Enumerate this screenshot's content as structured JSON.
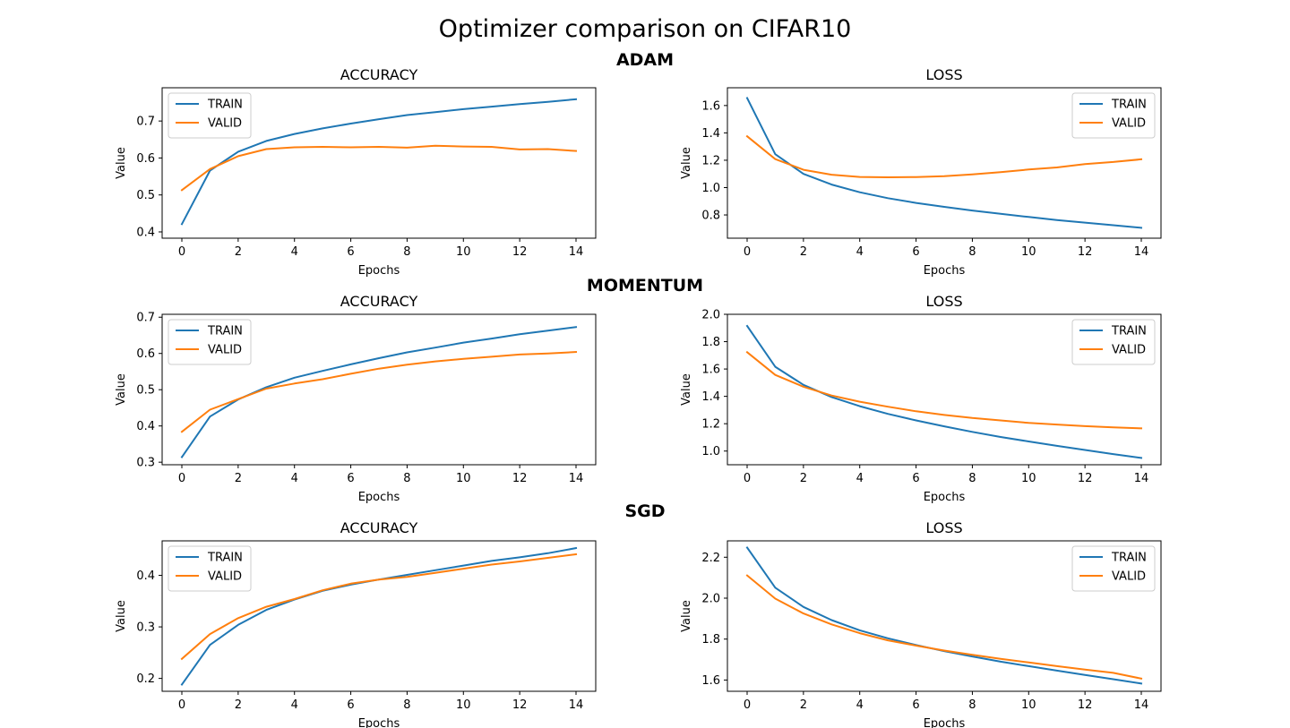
{
  "figure": {
    "title": "Optimizer comparison on CIFAR10",
    "colors": {
      "train": "#1f77b4",
      "valid": "#ff7f0e"
    }
  },
  "chart_data": [
    {
      "type": "line",
      "group": "ADAM",
      "title": "ACCURACY",
      "xlabel": "Epochs",
      "ylabel": "Value",
      "x": [
        0,
        1,
        2,
        3,
        4,
        5,
        6,
        7,
        8,
        9,
        10,
        11,
        12,
        13,
        14
      ],
      "xlim": [
        -0.7,
        14.7
      ],
      "ylim": [
        0.383,
        0.79
      ],
      "xticks": [
        0,
        2,
        4,
        6,
        8,
        10,
        12,
        14
      ],
      "yticks": [
        0.4,
        0.5,
        0.6,
        0.7
      ],
      "legend": "top-left",
      "series": [
        {
          "name": "TRAIN",
          "color": "#1f77b4",
          "values": [
            0.421,
            0.566,
            0.617,
            0.646,
            0.665,
            0.68,
            0.693,
            0.705,
            0.716,
            0.724,
            0.732,
            0.739,
            0.746,
            0.752,
            0.759
          ]
        },
        {
          "name": "VALID",
          "color": "#ff7f0e",
          "values": [
            0.513,
            0.57,
            0.605,
            0.624,
            0.629,
            0.63,
            0.629,
            0.63,
            0.628,
            0.633,
            0.631,
            0.63,
            0.623,
            0.624,
            0.619
          ]
        }
      ]
    },
    {
      "type": "line",
      "group": "ADAM",
      "title": "LOSS",
      "xlabel": "Epochs",
      "ylabel": "Value",
      "x": [
        0,
        1,
        2,
        3,
        4,
        5,
        6,
        7,
        8,
        9,
        10,
        11,
        12,
        13,
        14
      ],
      "xlim": [
        -0.7,
        14.7
      ],
      "ylim": [
        0.63,
        1.73
      ],
      "xticks": [
        0,
        2,
        4,
        6,
        8,
        10,
        12,
        14
      ],
      "yticks": [
        0.8,
        1.0,
        1.2,
        1.4,
        1.6
      ],
      "legend": "top-right",
      "series": [
        {
          "name": "TRAIN",
          "color": "#1f77b4",
          "values": [
            1.655,
            1.244,
            1.1,
            1.022,
            0.966,
            0.923,
            0.888,
            0.859,
            0.832,
            0.808,
            0.785,
            0.763,
            0.744,
            0.725,
            0.706
          ]
        },
        {
          "name": "VALID",
          "color": "#ff7f0e",
          "values": [
            1.375,
            1.208,
            1.13,
            1.094,
            1.078,
            1.075,
            1.077,
            1.083,
            1.097,
            1.113,
            1.132,
            1.147,
            1.172,
            1.187,
            1.207
          ]
        }
      ]
    },
    {
      "type": "line",
      "group": "MOMENTUM",
      "title": "ACCURACY",
      "xlabel": "Epochs",
      "ylabel": "Value",
      "x": [
        0,
        1,
        2,
        3,
        4,
        5,
        6,
        7,
        8,
        9,
        10,
        11,
        12,
        13,
        14
      ],
      "xlim": [
        -0.7,
        14.7
      ],
      "ylim": [
        0.293,
        0.708
      ],
      "xticks": [
        0,
        2,
        4,
        6,
        8,
        10,
        12,
        14
      ],
      "yticks": [
        0.3,
        0.4,
        0.5,
        0.6,
        0.7
      ],
      "legend": "top-left",
      "series": [
        {
          "name": "TRAIN",
          "color": "#1f77b4",
          "values": [
            0.314,
            0.426,
            0.473,
            0.507,
            0.533,
            0.552,
            0.57,
            0.587,
            0.603,
            0.616,
            0.63,
            0.641,
            0.653,
            0.663,
            0.673
          ]
        },
        {
          "name": "VALID",
          "color": "#ff7f0e",
          "values": [
            0.384,
            0.445,
            0.474,
            0.503,
            0.517,
            0.529,
            0.544,
            0.558,
            0.569,
            0.578,
            0.585,
            0.591,
            0.597,
            0.6,
            0.604
          ]
        }
      ]
    },
    {
      "type": "line",
      "group": "MOMENTUM",
      "title": "LOSS",
      "xlabel": "Epochs",
      "ylabel": "Value",
      "x": [
        0,
        1,
        2,
        3,
        4,
        5,
        6,
        7,
        8,
        9,
        10,
        11,
        12,
        13,
        14
      ],
      "xlim": [
        -0.7,
        14.7
      ],
      "ylim": [
        0.9,
        2.0
      ],
      "xticks": [
        0,
        2,
        4,
        6,
        8,
        10,
        12,
        14
      ],
      "yticks": [
        1.0,
        1.2,
        1.4,
        1.6,
        1.8,
        2.0
      ],
      "legend": "top-right",
      "series": [
        {
          "name": "TRAIN",
          "color": "#1f77b4",
          "values": [
            1.915,
            1.616,
            1.484,
            1.395,
            1.328,
            1.272,
            1.224,
            1.181,
            1.14,
            1.103,
            1.07,
            1.038,
            1.008,
            0.978,
            0.95
          ]
        },
        {
          "name": "VALID",
          "color": "#ff7f0e",
          "values": [
            1.723,
            1.557,
            1.47,
            1.406,
            1.361,
            1.324,
            1.291,
            1.264,
            1.242,
            1.224,
            1.206,
            1.194,
            1.182,
            1.173,
            1.166
          ]
        }
      ]
    },
    {
      "type": "line",
      "group": "SGD",
      "title": "ACCURACY",
      "xlabel": "Epochs",
      "ylabel": "Value",
      "x": [
        0,
        1,
        2,
        3,
        4,
        5,
        6,
        7,
        8,
        9,
        10,
        11,
        12,
        13,
        14
      ],
      "xlim": [
        -0.7,
        14.7
      ],
      "ylim": [
        0.175,
        0.467
      ],
      "xticks": [
        0,
        2,
        4,
        6,
        8,
        10,
        12,
        14
      ],
      "yticks": [
        0.2,
        0.3,
        0.4
      ],
      "legend": "top-left",
      "series": [
        {
          "name": "TRAIN",
          "color": "#1f77b4",
          "values": [
            0.188,
            0.265,
            0.304,
            0.333,
            0.353,
            0.37,
            0.382,
            0.392,
            0.401,
            0.41,
            0.419,
            0.428,
            0.435,
            0.443,
            0.453
          ]
        },
        {
          "name": "VALID",
          "color": "#ff7f0e",
          "values": [
            0.238,
            0.286,
            0.317,
            0.339,
            0.354,
            0.371,
            0.384,
            0.392,
            0.397,
            0.405,
            0.413,
            0.421,
            0.427,
            0.434,
            0.441
          ]
        }
      ]
    },
    {
      "type": "line",
      "group": "SGD",
      "title": "LOSS",
      "xlabel": "Epochs",
      "ylabel": "Value",
      "x": [
        0,
        1,
        2,
        3,
        4,
        5,
        6,
        7,
        8,
        9,
        10,
        11,
        12,
        13,
        14
      ],
      "xlim": [
        -0.7,
        14.7
      ],
      "ylim": [
        1.545,
        2.28
      ],
      "xticks": [
        0,
        2,
        4,
        6,
        8,
        10,
        12,
        14
      ],
      "yticks": [
        1.6,
        1.8,
        2.0,
        2.2
      ],
      "legend": "top-right",
      "series": [
        {
          "name": "TRAIN",
          "color": "#1f77b4",
          "values": [
            2.247,
            2.051,
            1.957,
            1.893,
            1.843,
            1.804,
            1.771,
            1.741,
            1.715,
            1.69,
            1.668,
            1.646,
            1.625,
            1.604,
            1.583
          ]
        },
        {
          "name": "VALID",
          "color": "#ff7f0e",
          "values": [
            2.111,
            1.998,
            1.925,
            1.872,
            1.829,
            1.794,
            1.768,
            1.744,
            1.723,
            1.704,
            1.686,
            1.668,
            1.651,
            1.635,
            1.607
          ]
        }
      ]
    }
  ]
}
